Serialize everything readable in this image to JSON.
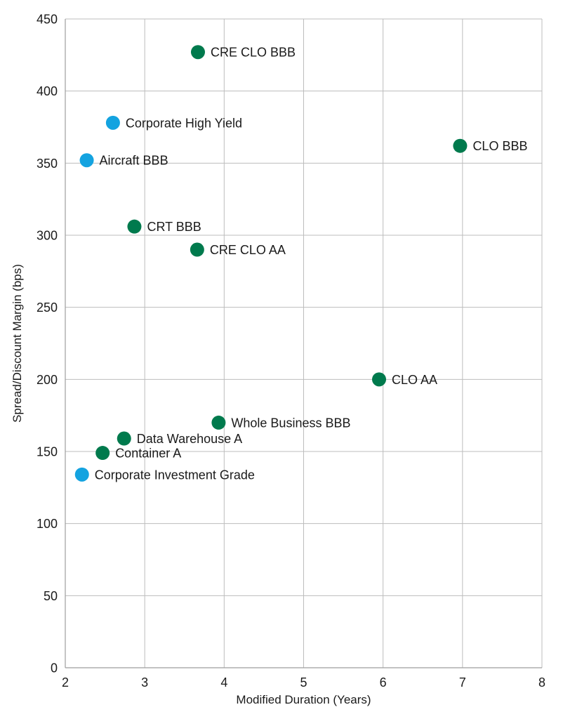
{
  "chart_data": {
    "type": "scatter",
    "title": "",
    "xlabel": "Modified Duration (Years)",
    "ylabel": "Spread/Discount Margin (bps)",
    "xlim": [
      2,
      8
    ],
    "ylim": [
      0,
      450
    ],
    "x_ticks": [
      2,
      3,
      4,
      5,
      6,
      7,
      8
    ],
    "y_ticks": [
      0,
      50,
      100,
      150,
      200,
      250,
      300,
      350,
      400,
      450
    ],
    "grid": true,
    "legend": "none",
    "colors": {
      "securitized": "#007a4d",
      "corporate": "#14a3e0"
    },
    "points": [
      {
        "label": "CRE CLO BBB",
        "x": 3.67,
        "y": 427,
        "group": "securitized"
      },
      {
        "label": "Corporate High Yield",
        "x": 2.6,
        "y": 378,
        "group": "corporate"
      },
      {
        "label": "CLO BBB",
        "x": 6.97,
        "y": 362,
        "group": "securitized"
      },
      {
        "label": "Aircraft BBB",
        "x": 2.27,
        "y": 352,
        "group": "corporate"
      },
      {
        "label": "CRT BBB",
        "x": 2.87,
        "y": 306,
        "group": "securitized"
      },
      {
        "label": "CRE CLO AA",
        "x": 3.66,
        "y": 290,
        "group": "securitized"
      },
      {
        "label": "CLO AA",
        "x": 5.95,
        "y": 200,
        "group": "securitized"
      },
      {
        "label": "Whole Business BBB",
        "x": 3.93,
        "y": 170,
        "group": "securitized"
      },
      {
        "label": "Data Warehouse A",
        "x": 2.74,
        "y": 159,
        "group": "securitized"
      },
      {
        "label": "Container A",
        "x": 2.47,
        "y": 149,
        "group": "securitized"
      },
      {
        "label": "Corporate Investment Grade",
        "x": 2.21,
        "y": 134,
        "group": "corporate"
      }
    ]
  }
}
